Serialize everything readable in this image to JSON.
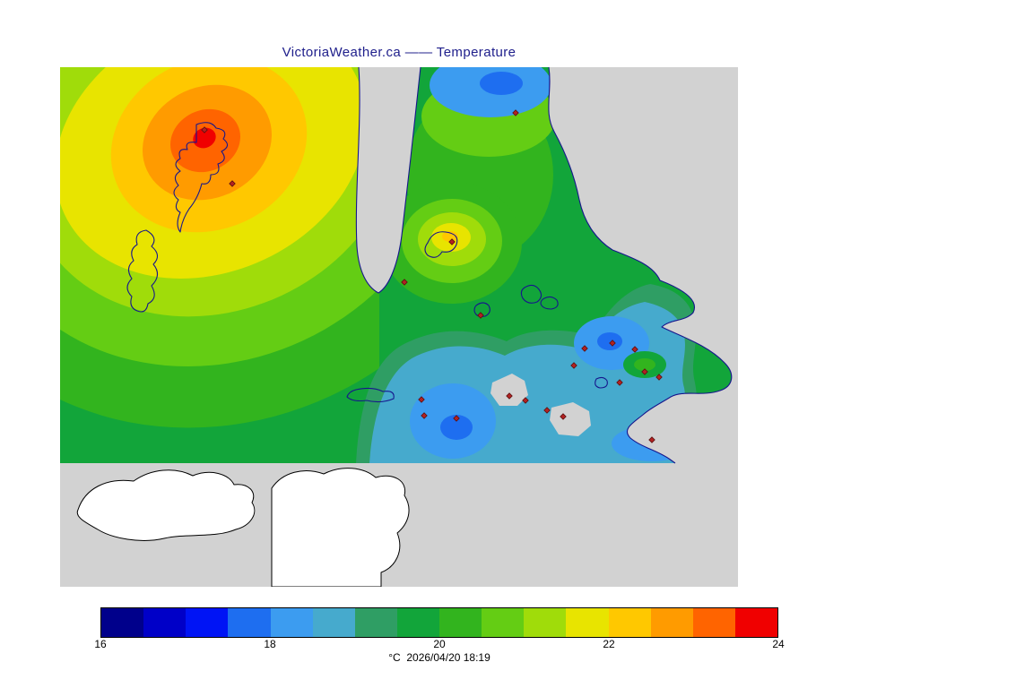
{
  "title": {
    "text": "VictoriaWeather.ca —— Temperature",
    "color": "#20208c"
  },
  "caption": {
    "text": "°C  2026/04/20 18:19"
  },
  "map": {
    "bg": "#d2d2d2",
    "coast_color": "#16168c",
    "land_fill": "#ffffff",
    "land_outline": "#000000",
    "station_fill": "#b22222",
    "station_outline": "#5a1010"
  },
  "chart_data": {
    "type": "heatmap",
    "title": "VictoriaWeather.ca —— Temperature",
    "variable": "Temperature",
    "units": "°C",
    "timestamp": "2026/04/20 18:19",
    "legend_position": "bottom",
    "colorbar": {
      "min": 16,
      "max": 24,
      "interval": 0.5,
      "tick_labels": [
        "16",
        "18",
        "20",
        "22",
        "24"
      ],
      "tick_values": [
        16,
        18,
        20,
        22,
        24
      ],
      "palette": [
        "#00008b",
        "#0000c8",
        "#0014f5",
        "#1e6ef0",
        "#3c9cf0",
        "#46aacd",
        "#2f9e64",
        "#12a53a",
        "#32b41e",
        "#64cd14",
        "#a0dc0a",
        "#e8e400",
        "#ffc800",
        "#ff9b00",
        "#ff6400",
        "#f00000"
      ]
    },
    "features": [
      {
        "name": "warm-maximum",
        "approx_temp_c": 23.7,
        "region": "northwest offshore"
      },
      {
        "name": "warm-spot",
        "approx_temp_c": 22.2,
        "region": "central inlet"
      },
      {
        "name": "cool-pocket",
        "approx_temp_c": 17.8,
        "region": "southern coastal waters"
      },
      {
        "name": "cool-pocket",
        "approx_temp_c": 17.8,
        "region": "southeastern islands"
      },
      {
        "name": "cool-band",
        "approx_temp_c": 18.7,
        "region": "northern peninsula tip"
      }
    ],
    "stations": [
      [
        161,
        70
      ],
      [
        192,
        130
      ],
      [
        508,
        51
      ],
      [
        437,
        195
      ],
      [
        384,
        240
      ],
      [
        469,
        277
      ],
      [
        403,
        371
      ],
      [
        406,
        389
      ],
      [
        442,
        392
      ],
      [
        501,
        367
      ],
      [
        519,
        372
      ],
      [
        543,
        383
      ],
      [
        561,
        390
      ],
      [
        573,
        333
      ],
      [
        585,
        314
      ],
      [
        616,
        308
      ],
      [
        641,
        315
      ],
      [
        652,
        340
      ],
      [
        668,
        346
      ],
      [
        624,
        352
      ],
      [
        660,
        416
      ]
    ]
  }
}
